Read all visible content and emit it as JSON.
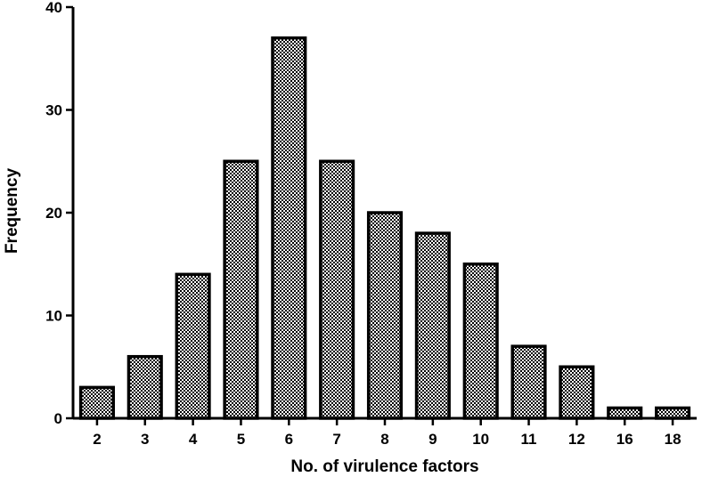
{
  "chart_data": {
    "type": "bar",
    "title": "",
    "xlabel": "No. of  virulence factors",
    "ylabel": "Frequency",
    "categories": [
      "2",
      "3",
      "4",
      "5",
      "6",
      "7",
      "8",
      "9",
      "10",
      "11",
      "12",
      "16",
      "18"
    ],
    "values": [
      3,
      6,
      14,
      25,
      37,
      25,
      20,
      18,
      15,
      7,
      5,
      1,
      1
    ],
    "ylim": [
      0,
      40
    ],
    "yticks": [
      0,
      10,
      20,
      30,
      40
    ],
    "grid": false,
    "legend": "none",
    "bar_pattern": "checkered",
    "colors": {
      "bar_dark": "#000000",
      "bar_light": "#ffffff",
      "axis": "#000000"
    }
  }
}
